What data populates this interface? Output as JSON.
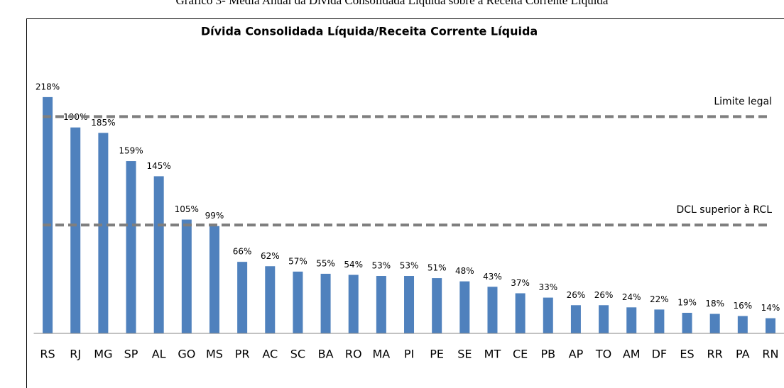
{
  "caption": "Gráfico 3- Média Anual da Dívida Consolidada Líquida sobre a Receita Corrente Líquida",
  "chart_data": {
    "type": "bar",
    "title": "Dívida Consolidada Líquida/Receita Corrente Líquida",
    "categories": [
      "RS",
      "RJ",
      "MG",
      "SP",
      "AL",
      "GO",
      "MS",
      "PR",
      "AC",
      "SC",
      "BA",
      "RO",
      "MA",
      "PI",
      "PE",
      "SE",
      "MT",
      "CE",
      "PB",
      "AP",
      "TO",
      "AM",
      "DF",
      "ES",
      "RR",
      "PA",
      "RN"
    ],
    "values": [
      218,
      190,
      185,
      159,
      145,
      105,
      99,
      66,
      62,
      57,
      55,
      54,
      53,
      53,
      51,
      48,
      43,
      37,
      33,
      26,
      26,
      24,
      22,
      19,
      18,
      16,
      14
    ],
    "value_labels": [
      "218%",
      "190%",
      "185%",
      "159%",
      "145%",
      "105%",
      "99%",
      "66%",
      "62%",
      "57%",
      "55%",
      "54%",
      "53%",
      "53%",
      "51%",
      "48%",
      "43%",
      "37%",
      "33%",
      "26%",
      "26%",
      "24%",
      "22%",
      "19%",
      "18%",
      "16%",
      "14%"
    ],
    "color": "#4f81bd",
    "ylim": [
      0,
      240
    ],
    "reference_lines": [
      {
        "value": 200,
        "label": "Limite legal",
        "color": "#7f7f7f"
      },
      {
        "value": 100,
        "label": "DCL superior à RCL",
        "color": "#7f7f7f"
      }
    ]
  }
}
